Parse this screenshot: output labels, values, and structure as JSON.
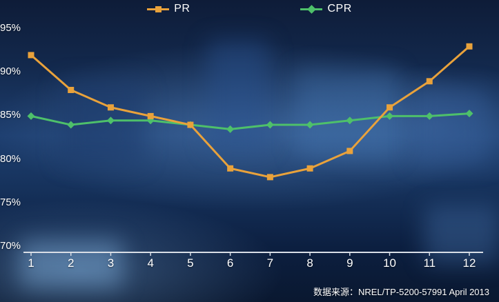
{
  "chart_data": {
    "type": "line",
    "title": "",
    "xlabel": "",
    "ylabel": "",
    "grid": false,
    "legend_position": "top-center",
    "ylim": [
      70,
      95
    ],
    "x_labels": [
      "1",
      "2",
      "3",
      "4",
      "5",
      "6",
      "7",
      "8",
      "9",
      "10",
      "11",
      "12"
    ],
    "y_ticks": [
      95,
      90,
      85,
      80,
      75,
      70
    ],
    "y_tick_labels": [
      "95%",
      "90%",
      "85%",
      "80%",
      "75%",
      "70%"
    ],
    "series": [
      {
        "name": "PR",
        "color": "#E9A23B",
        "marker": "square",
        "values": [
          92,
          88,
          86,
          85,
          84,
          79,
          78,
          79,
          81,
          86,
          89,
          93
        ]
      },
      {
        "name": "CPR",
        "color": "#4EC06A",
        "marker": "diamond",
        "values": [
          85,
          84,
          84.5,
          84.5,
          84,
          83.5,
          84,
          84,
          84.5,
          85,
          85,
          85.3
        ]
      }
    ]
  },
  "colors": {
    "axis_line": "#D9DEE6",
    "label_text": "#FFFFFF"
  },
  "caption": {
    "source": "数据来源：NREL/TP-5200-57991 April 2013"
  }
}
